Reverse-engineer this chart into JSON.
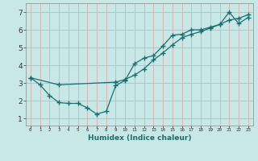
{
  "xlabel": "Humidex (Indice chaleur)",
  "ylabel": "",
  "bg_color": "#c8e8e8",
  "grid_color": "#d4b8b8",
  "line_color": "#1a6e6e",
  "xlim": [
    -0.5,
    23.5
  ],
  "ylim": [
    0.6,
    7.5
  ],
  "xticks": [
    0,
    1,
    2,
    3,
    4,
    5,
    6,
    7,
    8,
    9,
    10,
    11,
    12,
    13,
    14,
    15,
    16,
    17,
    18,
    19,
    20,
    21,
    22,
    23
  ],
  "yticks": [
    1,
    2,
    3,
    4,
    5,
    6,
    7
  ],
  "curve1_x": [
    0,
    1,
    2,
    3,
    4,
    5,
    6,
    7,
    8,
    9,
    10,
    11,
    12,
    13,
    14,
    15,
    16,
    17,
    18,
    19,
    20,
    21,
    22,
    23
  ],
  "curve1_y": [
    3.3,
    2.9,
    2.3,
    1.9,
    1.85,
    1.85,
    1.6,
    1.25,
    1.4,
    2.85,
    3.15,
    4.1,
    4.4,
    4.55,
    5.1,
    5.7,
    5.75,
    6.0,
    6.0,
    6.15,
    6.3,
    7.0,
    6.35,
    6.7
  ],
  "curve2_x": [
    0,
    3,
    9,
    10,
    11,
    12,
    13,
    14,
    15,
    16,
    17,
    18,
    19,
    20,
    21,
    22,
    23
  ],
  "curve2_y": [
    3.3,
    2.9,
    3.05,
    3.2,
    3.45,
    3.8,
    4.3,
    4.7,
    5.15,
    5.55,
    5.75,
    5.9,
    6.1,
    6.3,
    6.55,
    6.65,
    6.85
  ]
}
